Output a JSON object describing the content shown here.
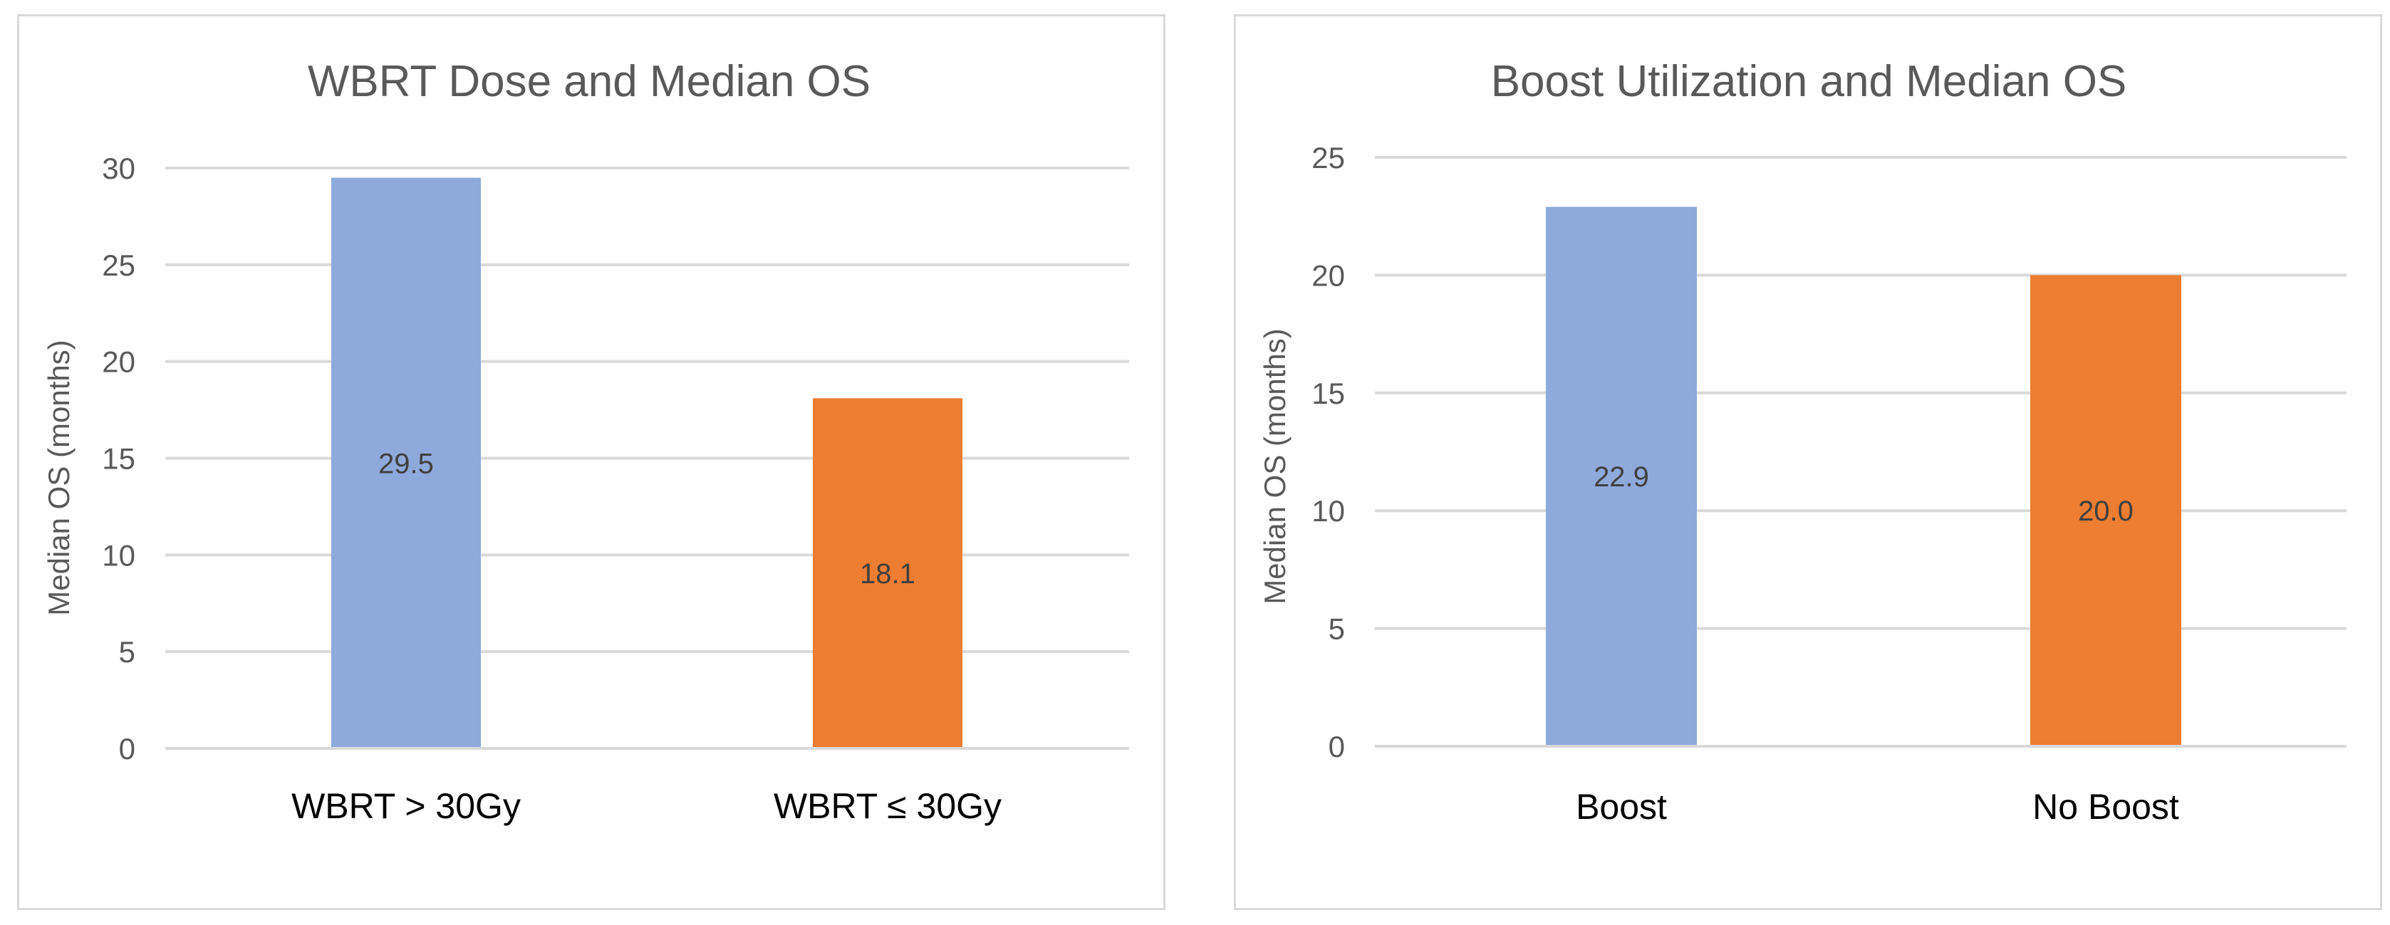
{
  "colors": {
    "blue": "#8eaadb",
    "orange": "#ed7d31",
    "grid": "#d9d9d9"
  },
  "chart_data": [
    {
      "type": "bar",
      "title": "WBRT Dose and Median OS",
      "ylabel": "Median OS (months)",
      "xlabel": "",
      "categories": [
        "WBRT > 30Gy",
        "WBRT ≤ 30Gy"
      ],
      "values": [
        29.5,
        18.1
      ],
      "data_labels": [
        "29.5",
        "18.1"
      ],
      "bar_colors": [
        "#8eaadb",
        "#ed7d31"
      ],
      "ylim": [
        0,
        30
      ],
      "yticks": [
        0,
        5,
        10,
        15,
        20,
        25,
        30
      ],
      "grid": true,
      "legend": "none"
    },
    {
      "type": "bar",
      "title": "Boost Utilization and Median OS",
      "ylabel": "Median OS (months)",
      "xlabel": "",
      "categories": [
        "Boost",
        "No Boost"
      ],
      "values": [
        22.9,
        20.0
      ],
      "data_labels": [
        "22.9",
        "20.0"
      ],
      "bar_colors": [
        "#8eaadb",
        "#ed7d31"
      ],
      "ylim": [
        0,
        25
      ],
      "yticks": [
        0,
        5,
        10,
        15,
        20,
        25
      ],
      "grid": true,
      "legend": "none"
    }
  ]
}
